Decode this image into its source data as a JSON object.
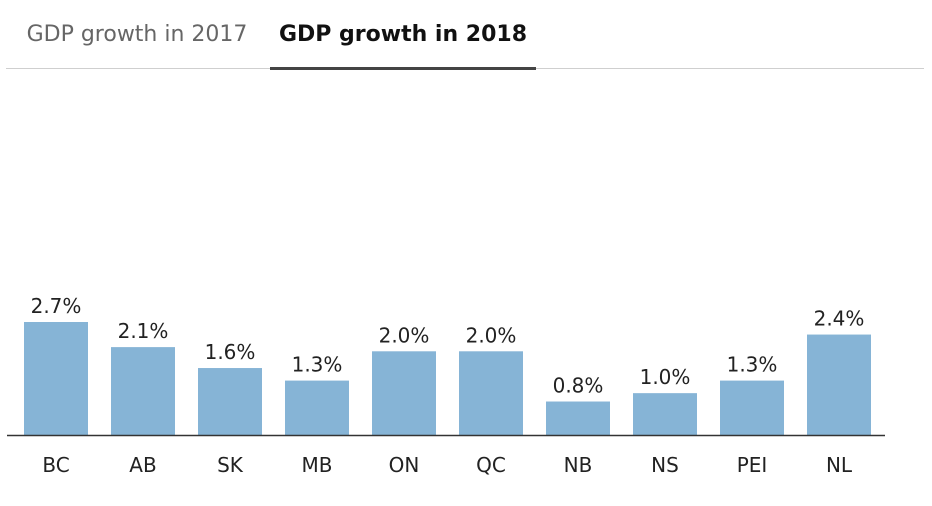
{
  "tabs": [
    {
      "label": "GDP growth in 2017",
      "active": false
    },
    {
      "label": "GDP growth in 2018",
      "active": true
    }
  ],
  "colors": {
    "bar": "#86b4d6",
    "axis": "#333333"
  },
  "chart_data": {
    "type": "bar",
    "categories": [
      "BC",
      "AB",
      "SK",
      "MB",
      "ON",
      "QC",
      "NB",
      "NS",
      "PEI",
      "NL"
    ],
    "values": [
      2.7,
      2.1,
      1.6,
      1.3,
      2.0,
      2.0,
      0.8,
      1.0,
      1.3,
      2.4
    ],
    "data_labels": [
      "2.7%",
      "2.1%",
      "1.6%",
      "1.3%",
      "2.0%",
      "2.0%",
      "0.8%",
      "1.0%",
      "1.3%",
      "2.4%"
    ],
    "title": "",
    "xlabel": "",
    "ylabel": "",
    "ylim": [
      0,
      2.7
    ],
    "grid": false,
    "legend": false
  }
}
